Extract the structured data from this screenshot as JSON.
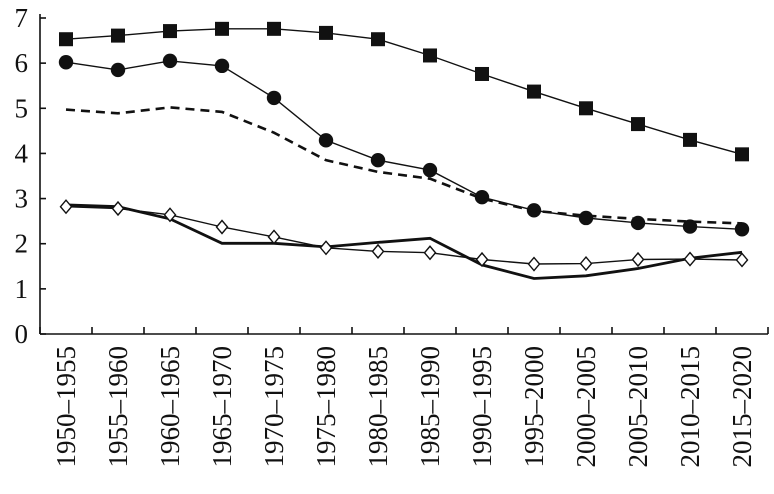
{
  "chart_data": {
    "type": "line",
    "title": "",
    "xlabel": "",
    "ylabel": "",
    "ylim": [
      0,
      7
    ],
    "yticks": [
      0,
      1,
      2,
      3,
      4,
      5,
      6,
      7
    ],
    "grid": false,
    "legend": "none",
    "categories": [
      "1950–1955",
      "1955–1960",
      "1960–1965",
      "1965–1970",
      "1970–1975",
      "1975–1980",
      "1980–1985",
      "1985–1990",
      "1990–1995",
      "1995–2000",
      "2000–2005",
      "2005–2010",
      "2010–2015",
      "2015–2020"
    ],
    "series": [
      {
        "marker": "square",
        "line_style": "solid",
        "values": [
          6.53,
          6.61,
          6.71,
          6.76,
          6.76,
          6.67,
          6.53,
          6.17,
          5.76,
          5.37,
          5.0,
          4.65,
          4.3,
          3.98
        ]
      },
      {
        "marker": "circle",
        "line_style": "solid",
        "values": [
          6.02,
          5.85,
          6.05,
          5.94,
          5.23,
          4.29,
          3.85,
          3.63,
          3.03,
          2.74,
          2.57,
          2.46,
          2.38,
          2.32
        ]
      },
      {
        "marker": "none",
        "line_style": "dashed",
        "values": [
          4.97,
          4.89,
          5.02,
          4.92,
          4.46,
          3.85,
          3.59,
          3.44,
          3.0,
          2.73,
          2.62,
          2.55,
          2.49,
          2.45
        ]
      },
      {
        "marker": "none",
        "line_style": "solid-thick",
        "values": [
          2.86,
          2.82,
          2.55,
          2.01,
          2.01,
          1.93,
          2.03,
          2.12,
          1.53,
          1.23,
          1.29,
          1.45,
          1.68,
          1.81
        ]
      },
      {
        "marker": "diamond",
        "line_style": "solid",
        "values": [
          2.82,
          2.78,
          2.64,
          2.37,
          2.15,
          1.91,
          1.83,
          1.8,
          1.65,
          1.55,
          1.56,
          1.65,
          1.66,
          1.64
        ]
      }
    ]
  }
}
